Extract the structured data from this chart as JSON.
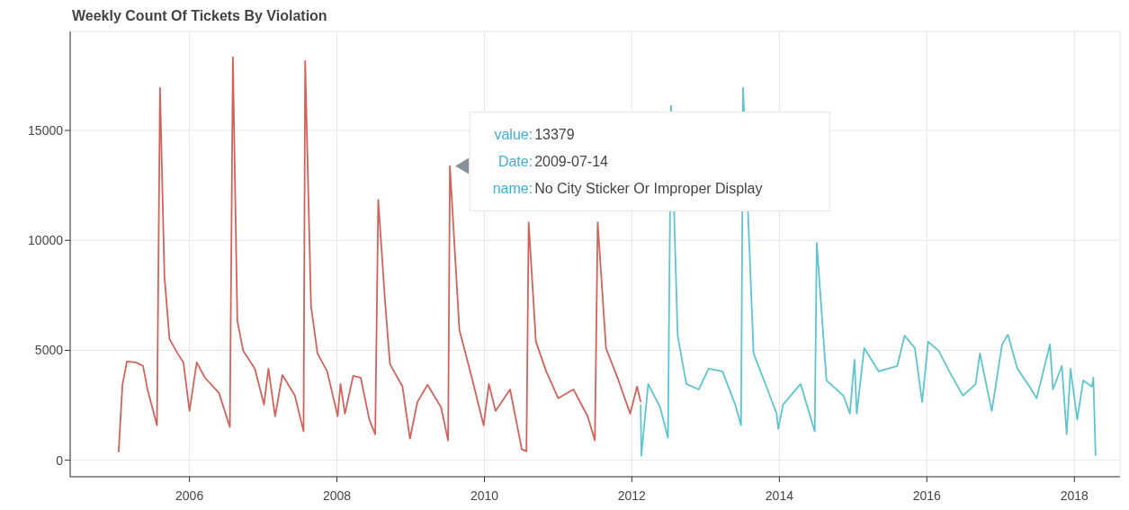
{
  "chart_data": {
    "type": "line",
    "title": "Weekly Count Of Tickets By Violation",
    "xlim": [
      "2004-05-20",
      "2018-08-15"
    ],
    "xticks": [
      "2006",
      "2008",
      "2010",
      "2012",
      "2014",
      "2016",
      "2018"
    ],
    "ylim": [
      -750,
      19500
    ],
    "yticks": [
      0,
      5000,
      10000,
      15000
    ],
    "grid": true,
    "marker": "none",
    "line_style": "solid",
    "series": [
      {
        "color": "#d2625a",
        "x": [
          "2005-01-15",
          "2005-02-03",
          "2005-02-25",
          "2005-04-10",
          "2005-05-16",
          "2005-06-07",
          "2005-07-24",
          "2005-08-08",
          "2005-08-30",
          "2005-09-24",
          "2005-11-03",
          "2005-12-02",
          "2006-01-01",
          "2006-02-06",
          "2006-03-18",
          "2006-05-27",
          "2006-07-20",
          "2006-08-04",
          "2006-08-26",
          "2006-09-24",
          "2006-11-21",
          "2007-01-05",
          "2007-01-27",
          "2007-03-01",
          "2007-04-06",
          "2007-06-07",
          "2007-07-20",
          "2007-07-28",
          "2007-08-26",
          "2007-09-27",
          "2007-11-14",
          "2008-01-05",
          "2008-01-19",
          "2008-02-10",
          "2008-03-22",
          "2008-04-28",
          "2008-06-10",
          "2008-07-09",
          "2008-07-24",
          "2008-08-26",
          "2008-09-20",
          "2008-11-21",
          "2008-12-28",
          "2009-02-03",
          "2009-03-25",
          "2009-05-31",
          "2009-07-05",
          "2009-07-14",
          "2009-08-30",
          "2009-10-27",
          "2009-12-28",
          "2010-01-23",
          "2010-02-25",
          "2010-05-08",
          "2010-07-05",
          "2010-07-28",
          "2010-08-08",
          "2010-09-13",
          "2010-11-03",
          "2011-01-01",
          "2011-03-18",
          "2011-05-27",
          "2011-07-02",
          "2011-07-16",
          "2011-08-26",
          "2011-10-27",
          "2011-12-24",
          "2012-01-27",
          "2012-02-14"
        ],
        "values": [
          370,
          3430,
          4490,
          4450,
          4290,
          3220,
          1590,
          16940,
          8370,
          5510,
          4860,
          4450,
          2240,
          4450,
          3760,
          3060,
          1510,
          18330,
          6330,
          4980,
          4160,
          2530,
          4160,
          2000,
          3880,
          2940,
          1310,
          18160,
          7020,
          4860,
          4040,
          2000,
          3470,
          2120,
          3840,
          3760,
          1840,
          1180,
          11840,
          7310,
          4370,
          3350,
          980,
          2650,
          3430,
          2410,
          900,
          13379,
          5920,
          3880,
          1590,
          3470,
          2240,
          3220,
          490,
          410,
          10820,
          5390,
          4040,
          2820,
          3220,
          2000,
          900,
          10820,
          5100,
          3630,
          2120,
          3350,
          2650
        ]
      },
      {
        "color": "#5bc6d0",
        "x": [
          "2012-02-14",
          "2012-02-17",
          "2012-03-22",
          "2012-05-20",
          "2012-06-28",
          "2012-07-13",
          "2012-08-15",
          "2012-09-27",
          "2012-11-28",
          "2013-01-15",
          "2013-03-25",
          "2013-05-27",
          "2013-06-25",
          "2013-07-05",
          "2013-08-26",
          "2013-11-03",
          "2013-12-18",
          "2013-12-26",
          "2014-01-19",
          "2014-04-16",
          "2014-06-25",
          "2014-07-05",
          "2014-08-22",
          "2014-11-14",
          "2014-12-16",
          "2015-01-08",
          "2015-01-19",
          "2015-02-25",
          "2015-05-08",
          "2015-08-08",
          "2015-09-13",
          "2015-11-03",
          "2015-12-09",
          "2016-01-08",
          "2016-02-28",
          "2016-05-01",
          "2016-06-28",
          "2016-08-30",
          "2016-09-20",
          "2016-11-18",
          "2017-01-08",
          "2017-02-06",
          "2017-03-25",
          "2017-05-24",
          "2017-06-28",
          "2017-09-02",
          "2017-09-17",
          "2017-10-31",
          "2017-11-24",
          "2017-12-13",
          "2018-01-15",
          "2018-02-14",
          "2018-03-29",
          "2018-04-05",
          "2018-04-16"
        ],
        "values": [
          2530,
          200,
          3470,
          2410,
          1020,
          16120,
          5670,
          3470,
          3220,
          4160,
          4040,
          2530,
          1590,
          16940,
          4860,
          3220,
          2120,
          1430,
          2530,
          3470,
          1310,
          9880,
          3630,
          2940,
          2120,
          4570,
          2120,
          5100,
          4040,
          4290,
          5670,
          5100,
          2650,
          5390,
          4980,
          3880,
          2940,
          3470,
          4860,
          2240,
          5270,
          5710,
          4160,
          3350,
          2820,
          5270,
          3220,
          4290,
          1180,
          4160,
          1840,
          3630,
          3350,
          3760,
          200
        ]
      }
    ],
    "annotations": [
      {
        "text": "value:13379\nDate:2009-07-14\nname:No City Sticker Or Improper Display",
        "x": "2009-07-14",
        "y": 13379
      }
    ]
  }
}
